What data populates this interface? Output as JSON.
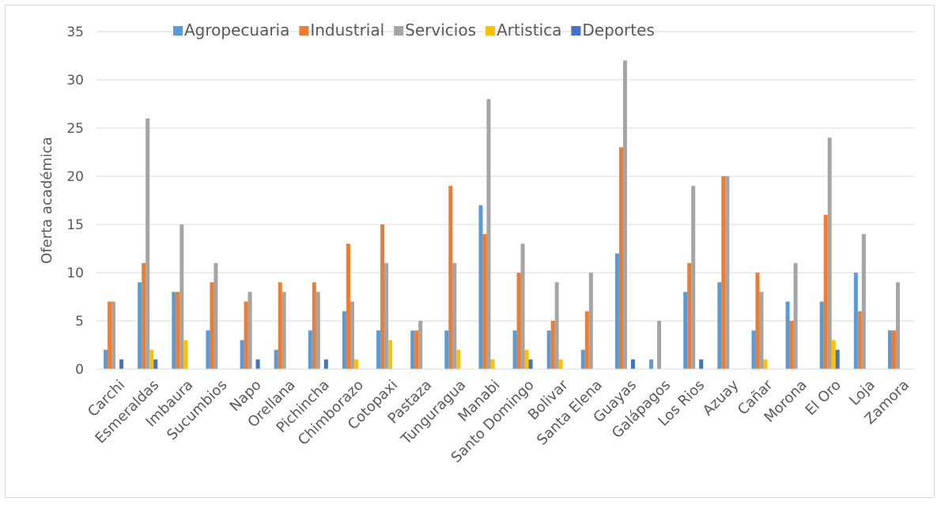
{
  "chart_data": {
    "type": "bar",
    "title": "",
    "xlabel": "",
    "ylabel": "Oferta académica",
    "ylim": [
      0,
      35
    ],
    "yticks": [
      "0",
      "5",
      "10",
      "15",
      "20",
      "25",
      "30",
      "35"
    ],
    "grid": true,
    "legend_position": "top",
    "categories": [
      "Carchi",
      "Esmeraldas",
      "Imbaura",
      "Sucumbios",
      "Napo",
      "Orellana",
      "Pichincha",
      "Chimborazo",
      "Cotopaxi",
      "Pastaza",
      "Tunguragua",
      "Manabi",
      "Santo Domingo",
      "Bolivar",
      "Santa Elena",
      "Guayas",
      "Galápagos",
      "Los Rios",
      "Azuay",
      "Cañar",
      "Morona",
      "El Oro",
      "Loja",
      "Zamora"
    ],
    "series": [
      {
        "name": "Agropecuaria",
        "color": "#5b9bd5",
        "values": [
          2,
          9,
          8,
          4,
          3,
          2,
          4,
          6,
          4,
          4,
          4,
          17,
          4,
          4,
          2,
          12,
          1,
          8,
          9,
          4,
          7,
          7,
          10,
          4
        ]
      },
      {
        "name": "Industrial",
        "color": "#ed7d31",
        "values": [
          7,
          11,
          8,
          9,
          7,
          9,
          9,
          13,
          15,
          4,
          19,
          14,
          10,
          5,
          6,
          23,
          0,
          11,
          20,
          10,
          5,
          16,
          6,
          4
        ]
      },
      {
        "name": "Servicios",
        "color": "#a5a5a5",
        "values": [
          7,
          26,
          15,
          11,
          8,
          8,
          8,
          7,
          11,
          5,
          11,
          28,
          13,
          9,
          10,
          32,
          5,
          19,
          20,
          8,
          11,
          24,
          14,
          9
        ]
      },
      {
        "name": "Artistica",
        "color": "#ffc000",
        "values": [
          0,
          2,
          3,
          0,
          0,
          0,
          0,
          1,
          3,
          0,
          2,
          1,
          2,
          1,
          0,
          0,
          0,
          0,
          0,
          1,
          0,
          3,
          0,
          0
        ]
      },
      {
        "name": "Deportes",
        "color": "#4472c4",
        "values": [
          1,
          1,
          0,
          0,
          1,
          0,
          1,
          0,
          0,
          0,
          0,
          0,
          1,
          0,
          0,
          1,
          0,
          1,
          0,
          0,
          0,
          2,
          0,
          0
        ]
      }
    ]
  }
}
